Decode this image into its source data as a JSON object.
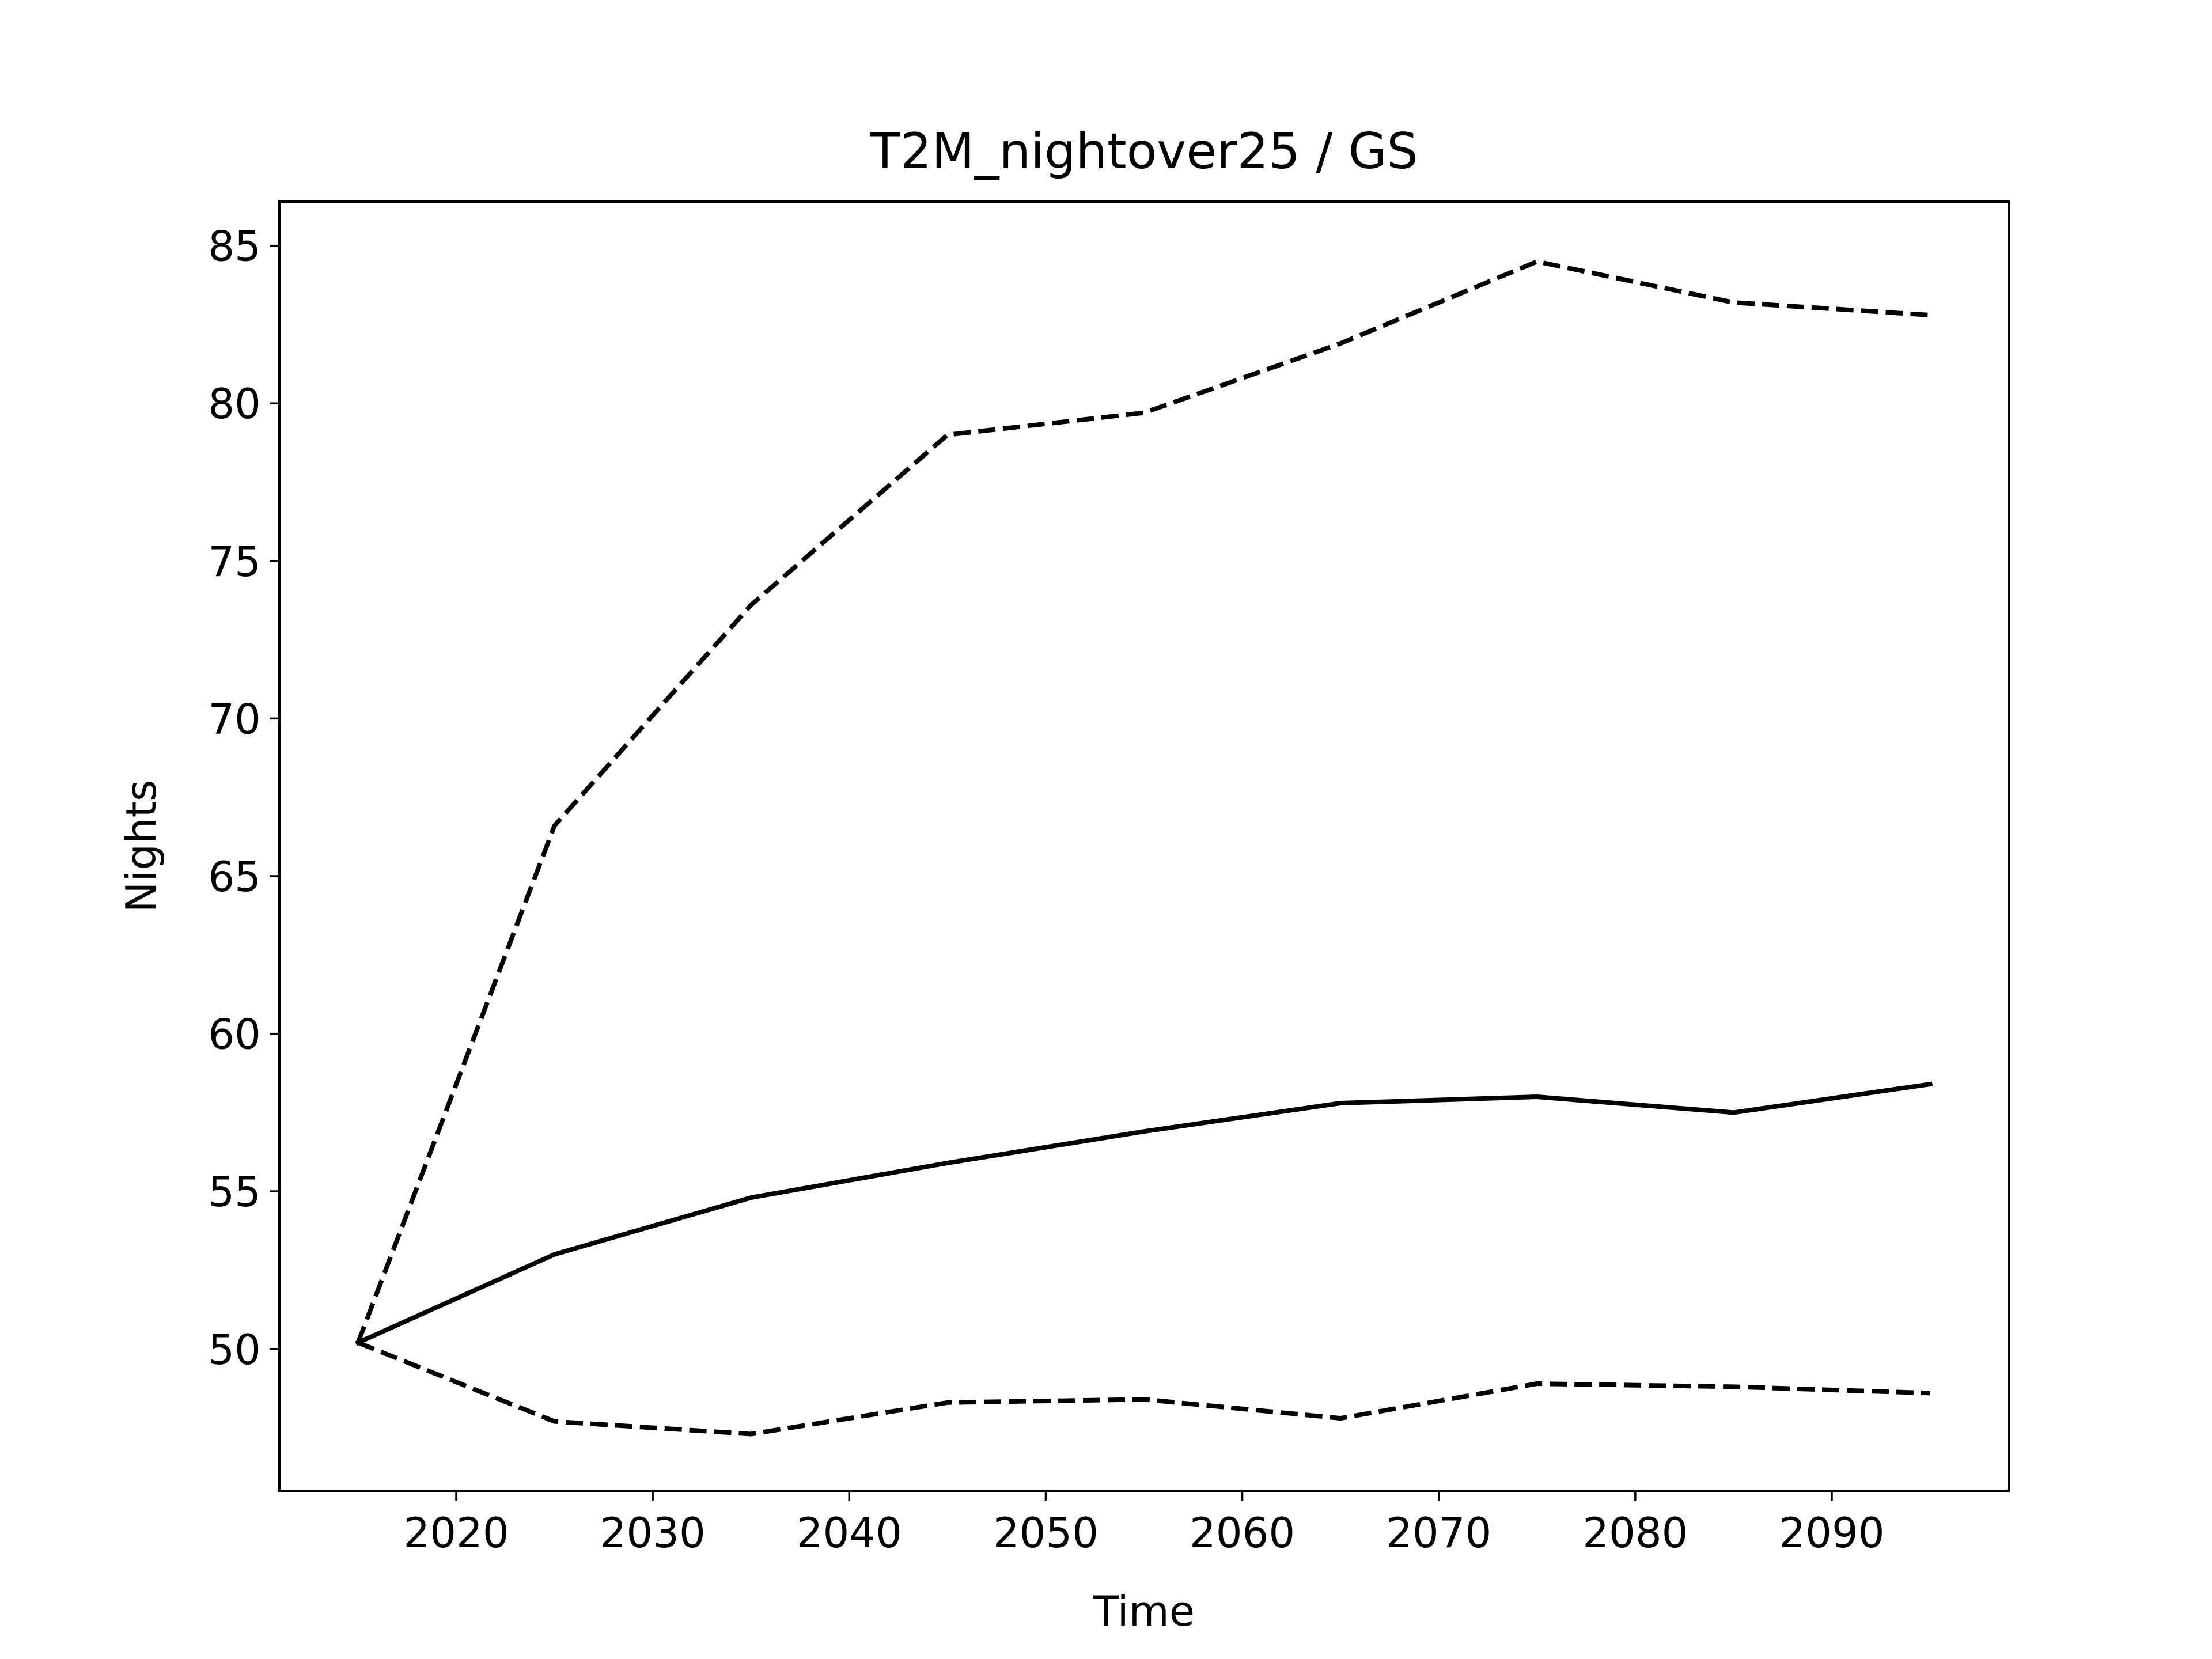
{
  "chart_data": {
    "type": "line",
    "title": "T2M_nightover25 / GS",
    "xlabel": "Time",
    "ylabel": "Nights",
    "xlim": [
      2011,
      2099
    ],
    "ylim": [
      45.5,
      86.4
    ],
    "xticks": [
      2020,
      2030,
      2040,
      2050,
      2060,
      2070,
      2080,
      2090
    ],
    "yticks": [
      50,
      55,
      60,
      65,
      70,
      75,
      80,
      85
    ],
    "grid": false,
    "legend": "none",
    "x": [
      2015,
      2025,
      2035,
      2045,
      2055,
      2065,
      2075,
      2085,
      2095
    ],
    "series": [
      {
        "style": "solid",
        "color": "#000000",
        "values": [
          50.2,
          53.0,
          54.8,
          55.9,
          56.9,
          57.8,
          58.0,
          57.5,
          58.4
        ]
      },
      {
        "style": "dashed",
        "color": "#000000",
        "values": [
          50.2,
          66.6,
          73.6,
          79.0,
          79.7,
          81.9,
          84.5,
          83.2,
          82.8
        ]
      },
      {
        "style": "dashed",
        "color": "#000000",
        "values": [
          50.2,
          47.7,
          47.3,
          48.3,
          48.4,
          47.8,
          48.9,
          48.8,
          48.6
        ]
      }
    ]
  }
}
